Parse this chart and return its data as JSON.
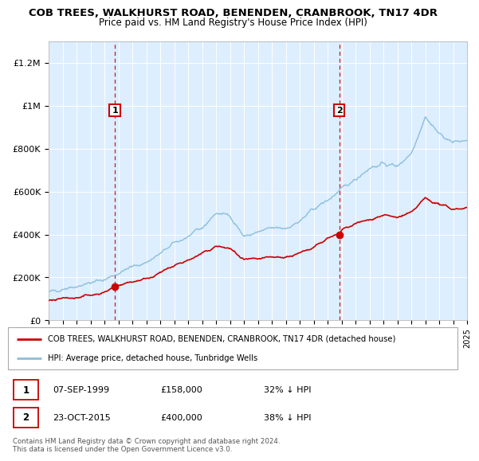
{
  "title": "COB TREES, WALKHURST ROAD, BENENDEN, CRANBROOK, TN17 4DR",
  "subtitle": "Price paid vs. HM Land Registry's House Price Index (HPI)",
  "hpi_color": "#8bbfda",
  "price_color": "#cc0000",
  "bg_color": "#ddeeff",
  "annotation1_date": "07-SEP-1999",
  "annotation1_price": 158000,
  "annotation1_label": "32% ↓ HPI",
  "annotation2_date": "23-OCT-2015",
  "annotation2_price": 400000,
  "annotation2_label": "38% ↓ HPI",
  "legend_line1": "COB TREES, WALKHURST ROAD, BENENDEN, CRANBROOK, TN17 4DR (detached house)",
  "legend_line2": "HPI: Average price, detached house, Tunbridge Wells",
  "footer": "Contains HM Land Registry data © Crown copyright and database right 2024.\nThis data is licensed under the Open Government Licence v3.0.",
  "ylim": [
    0,
    1300000
  ],
  "yticks": [
    0,
    200000,
    400000,
    600000,
    800000,
    1000000,
    1200000
  ],
  "ytick_labels": [
    "£0",
    "£200K",
    "£400K",
    "£600K",
    "£800K",
    "£1M",
    "£1.2M"
  ],
  "x_start_year": 1995,
  "x_end_year": 2025,
  "sale1_year": 1999.75,
  "sale2_year": 2015.83,
  "hpi_anchors_x": [
    1995,
    1996,
    1997,
    1998,
    1999,
    2000,
    2001,
    2002,
    2003,
    2004,
    2005,
    2006,
    2007,
    2008,
    2009,
    2010,
    2011,
    2012,
    2013,
    2014,
    2015,
    2016,
    2017,
    2018,
    2019,
    2020,
    2021,
    2022,
    2023,
    2024,
    2025
  ],
  "hpi_anchors_y": [
    130000,
    148000,
    160000,
    175000,
    190000,
    220000,
    250000,
    270000,
    310000,
    360000,
    390000,
    430000,
    500000,
    490000,
    390000,
    410000,
    430000,
    430000,
    460000,
    520000,
    560000,
    610000,
    660000,
    710000,
    730000,
    720000,
    780000,
    950000,
    870000,
    830000,
    840000
  ],
  "red_anchors_x": [
    1995,
    1996,
    1997,
    1998,
    1999,
    1999.75,
    2000,
    2001,
    2002,
    2003,
    2004,
    2005,
    2006,
    2007,
    2008,
    2009,
    2010,
    2011,
    2012,
    2013,
    2014,
    2015,
    2015.83,
    2016,
    2017,
    2018,
    2019,
    2020,
    2021,
    2022,
    2023,
    2024,
    2025
  ],
  "red_anchors_y": [
    90000,
    100000,
    108000,
    118000,
    130000,
    158000,
    165000,
    180000,
    195000,
    220000,
    255000,
    280000,
    310000,
    345000,
    335000,
    280000,
    285000,
    295000,
    295000,
    310000,
    345000,
    380000,
    400000,
    420000,
    450000,
    470000,
    490000,
    480000,
    500000,
    570000,
    540000,
    520000,
    525000
  ]
}
